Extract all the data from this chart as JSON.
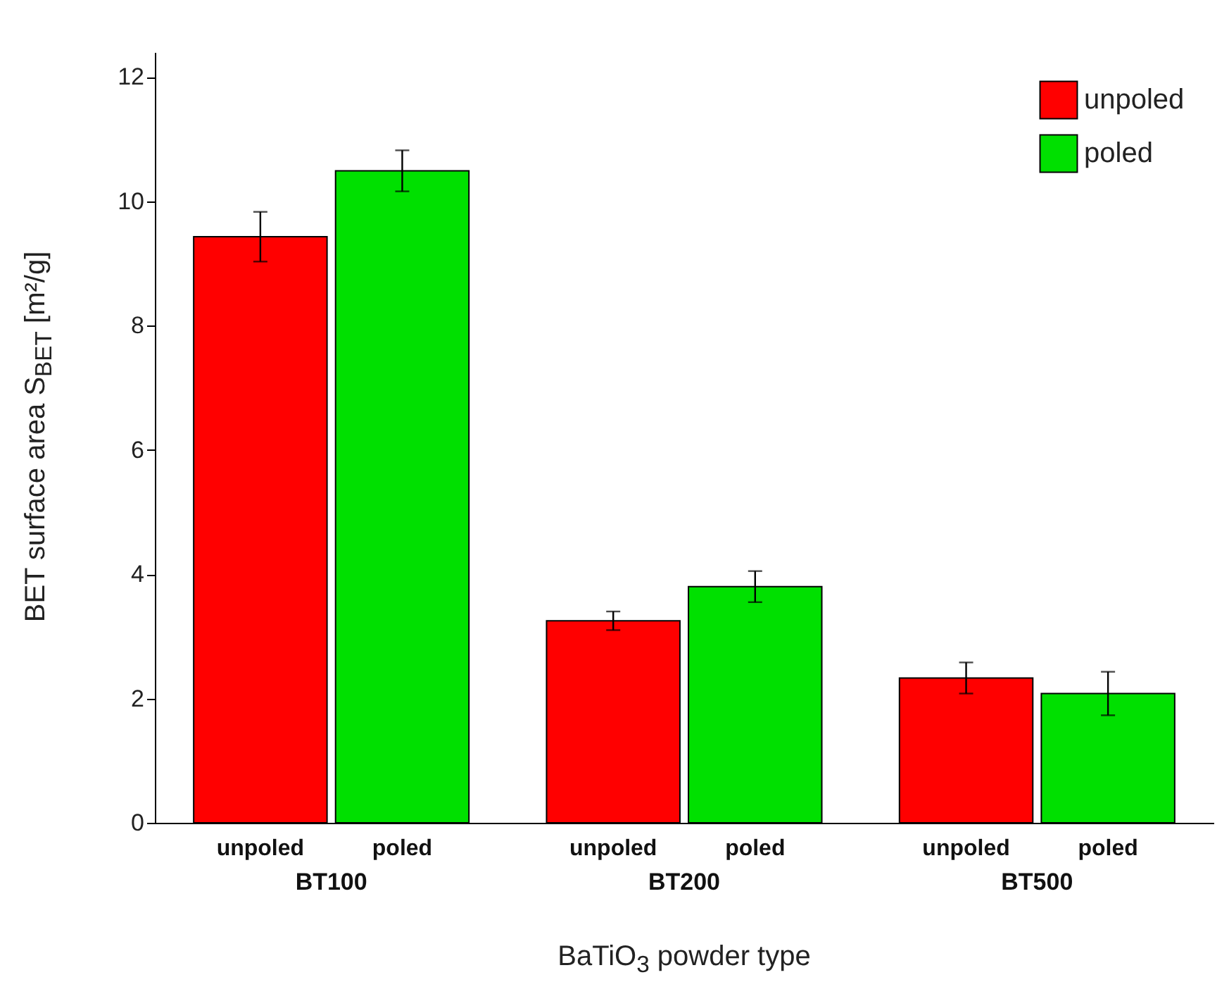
{
  "chart_data": {
    "type": "bar",
    "xlabel": "BaTiO$_{3}$ powder type",
    "ylabel": "BET surface area S$_{BET}$ [m²/g]",
    "categories": [
      "BT100",
      "BT200",
      "BT500"
    ],
    "series": [
      {
        "name": "unpoled",
        "color": "#ff0000",
        "values": [
          9.43,
          3.25,
          2.33
        ],
        "errors": [
          0.4,
          0.15,
          0.25
        ]
      },
      {
        "name": "poled",
        "color": "#00e000",
        "values": [
          10.49,
          3.8,
          2.08
        ],
        "errors": [
          0.33,
          0.25,
          0.35
        ]
      }
    ],
    "ylim": [
      0,
      12.4
    ],
    "yticks": [
      0,
      2,
      4,
      6,
      8,
      10,
      12
    ],
    "legend": "top right"
  }
}
